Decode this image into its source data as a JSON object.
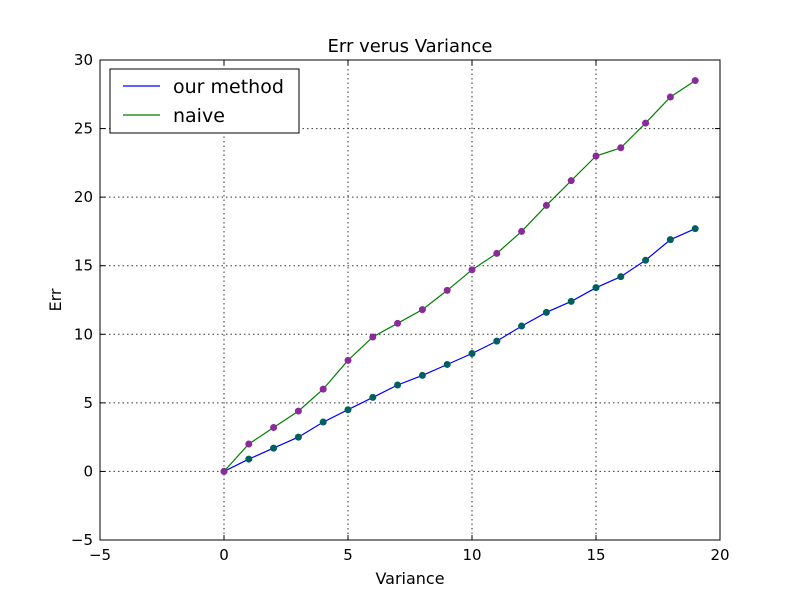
{
  "chart_data": {
    "type": "line",
    "title": "Err verus Variance",
    "xlabel": "Variance",
    "ylabel": "Err",
    "xlim": [
      -5,
      20
    ],
    "ylim": [
      -5,
      30
    ],
    "xticks": [
      -5,
      0,
      5,
      10,
      15,
      20
    ],
    "yticks": [
      -5,
      0,
      5,
      10,
      15,
      20,
      25,
      30
    ],
    "grid": true,
    "legend_position": "top-left",
    "series": [
      {
        "name": "our method",
        "color": "#0000ff",
        "marker_color": "#006060",
        "x": [
          0,
          1,
          2,
          3,
          4,
          5,
          6,
          7,
          8,
          9,
          10,
          11,
          12,
          13,
          14,
          15,
          16,
          17,
          18,
          19
        ],
        "y": [
          0,
          0.9,
          1.7,
          2.5,
          3.6,
          4.5,
          5.4,
          6.3,
          7.0,
          7.8,
          8.6,
          9.5,
          10.6,
          11.6,
          12.4,
          13.4,
          14.2,
          15.4,
          16.9,
          17.7
        ]
      },
      {
        "name": "naive",
        "color": "#008000",
        "marker_color": "#8b2a9b",
        "x": [
          0,
          1,
          2,
          3,
          4,
          5,
          6,
          7,
          8,
          9,
          10,
          11,
          12,
          13,
          14,
          15,
          16,
          17,
          18,
          19
        ],
        "y": [
          0,
          2.0,
          3.2,
          4.4,
          6.0,
          8.1,
          9.8,
          10.8,
          11.8,
          13.2,
          14.7,
          15.9,
          17.5,
          19.4,
          21.2,
          23.0,
          23.6,
          25.4,
          27.3,
          28.5
        ]
      }
    ]
  }
}
